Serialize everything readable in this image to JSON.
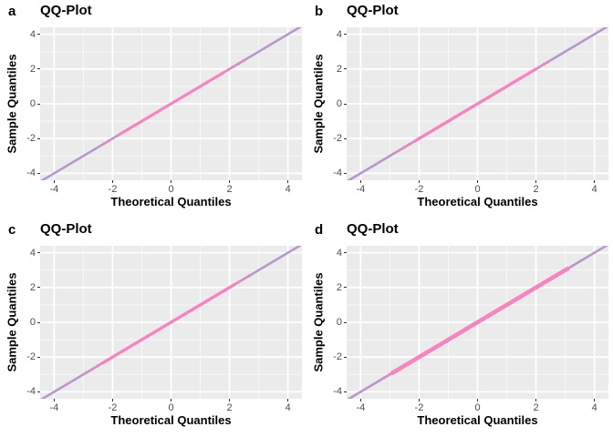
{
  "figure": {
    "background": "#FFFFFF",
    "panel_background": "#EBEBEB",
    "grid_major_color": "#FFFFFF",
    "grid_minor_color": "rgba(255,255,255,0.65)",
    "axis_tick_color": "#333333",
    "tick_label_color": "#4D4D4D",
    "text_color": "#000000",
    "reference_line_color": "#B897CE",
    "point_color": "#F784C0"
  },
  "chart_data": [
    {
      "type": "scatter",
      "tag": "a",
      "title": "QQ-Plot",
      "xlabel": "Theoretical Quantiles",
      "ylabel": "Sample Quantiles",
      "xlim": [
        -4.48,
        4.48
      ],
      "ylim": [
        -4.4,
        4.4
      ],
      "xticks": [
        -4,
        -2,
        0,
        2,
        4
      ],
      "yticks": [
        -4,
        -2,
        0,
        2,
        4
      ],
      "minor_gridlines": [
        -3,
        -1,
        1,
        3
      ],
      "grid": true,
      "legend": "none",
      "reference_line": {
        "slope": 1,
        "intercept": 0
      },
      "points_dense_range": [
        -1.75,
        1.8
      ],
      "points_outliers": [
        -2.28,
        -2.12,
        1.95,
        2.12,
        2.3,
        2.48
      ],
      "band_thickness": 3.2
    },
    {
      "type": "scatter",
      "tag": "b",
      "title": "QQ-Plot",
      "xlabel": "Theoretical Quantiles",
      "ylabel": "Sample Quantiles",
      "xlim": [
        -4.48,
        4.48
      ],
      "ylim": [
        -4.4,
        4.4
      ],
      "xticks": [
        -4,
        -2,
        0,
        2,
        4
      ],
      "yticks": [
        -4,
        -2,
        0,
        2,
        4
      ],
      "minor_gridlines": [
        -3,
        -1,
        1,
        3
      ],
      "grid": true,
      "legend": "none",
      "reference_line": {
        "slope": 1,
        "intercept": 0
      },
      "points_dense_range": [
        -2.15,
        2.0
      ],
      "points_outliers": [
        -2.68,
        -2.5,
        -2.33,
        2.12,
        2.28,
        2.4
      ],
      "band_thickness": 3.4
    },
    {
      "type": "scatter",
      "tag": "c",
      "title": "QQ-Plot",
      "xlabel": "Theoretical Quantiles",
      "ylabel": "Sample Quantiles",
      "xlim": [
        -4.48,
        4.48
      ],
      "ylim": [
        -4.4,
        4.4
      ],
      "xticks": [
        -4,
        -2,
        0,
        2,
        4
      ],
      "yticks": [
        -4,
        -2,
        0,
        2,
        4
      ],
      "minor_gridlines": [
        -3,
        -1,
        1,
        3
      ],
      "grid": true,
      "legend": "none",
      "reference_line": {
        "slope": 1,
        "intercept": 0
      },
      "points_dense_range": [
        -2.35,
        2.15
      ],
      "points_outliers": [
        -3.55,
        -2.9,
        -2.68,
        -2.5,
        2.3,
        2.5,
        2.68
      ],
      "band_thickness": 3.4
    },
    {
      "type": "scatter",
      "tag": "d",
      "title": "QQ-Plot",
      "xlabel": "Theoretical Quantiles",
      "ylabel": "Sample Quantiles",
      "xlim": [
        -4.48,
        4.48
      ],
      "ylim": [
        -4.4,
        4.4
      ],
      "xticks": [
        -4,
        -2,
        0,
        2,
        4
      ],
      "yticks": [
        -4,
        -2,
        0,
        2,
        4
      ],
      "minor_gridlines": [
        -3,
        -1,
        1,
        3
      ],
      "grid": true,
      "legend": "none",
      "reference_line": {
        "slope": 1,
        "intercept": 0
      },
      "points_dense_range": [
        -2.92,
        3.08
      ],
      "points_outliers": [
        -3.18,
        -3.02
      ],
      "band_thickness": 4.6
    }
  ]
}
